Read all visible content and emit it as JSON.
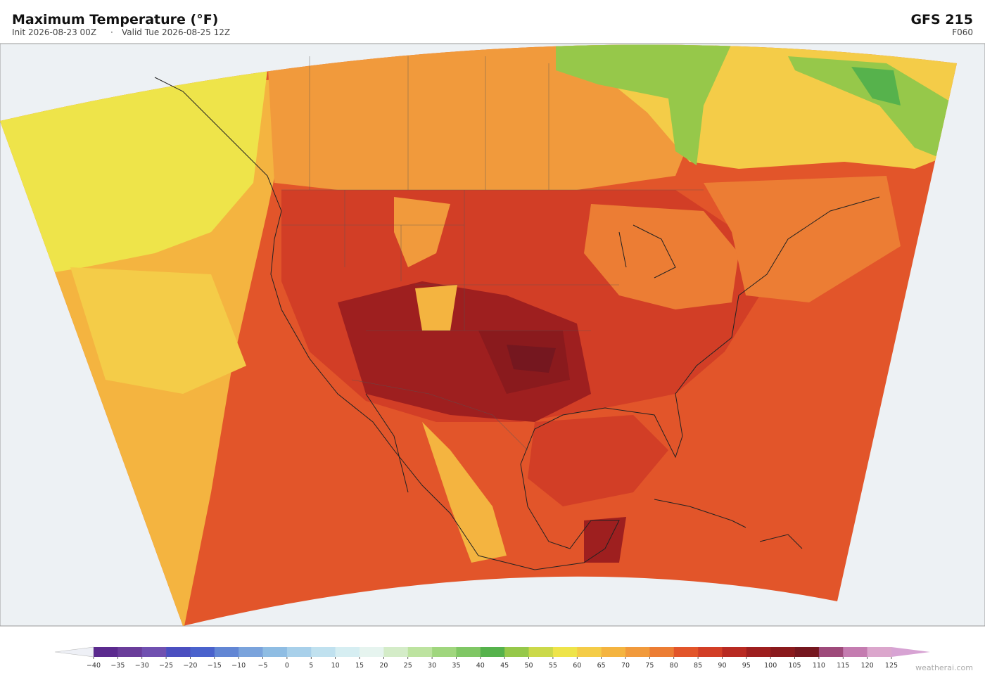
{
  "header": {
    "title": "Maximum Temperature  (°F)",
    "init": "Init 2026-08-23 00Z",
    "separator": "·",
    "valid": "Valid Tue 2026-08-25 12Z",
    "model": "GFS  215",
    "forecast_hour": "F060"
  },
  "colorbar": {
    "ticks": [
      {
        "value": -40,
        "label": "−40"
      },
      {
        "value": -35,
        "label": "−35"
      },
      {
        "value": -30,
        "label": "−30"
      },
      {
        "value": -25,
        "label": "−25"
      },
      {
        "value": -20,
        "label": "−20"
      },
      {
        "value": -15,
        "label": "−15"
      },
      {
        "value": -10,
        "label": "−10"
      },
      {
        "value": -5,
        "label": "−5"
      },
      0,
      5,
      10,
      15,
      20,
      25,
      30,
      35,
      40,
      45,
      50,
      55,
      60,
      65,
      70,
      75,
      80,
      85,
      90,
      95,
      100,
      105,
      110,
      115,
      120,
      125
    ],
    "colors": [
      "#5b2a8e",
      "#6a3d9a",
      "#7050b0",
      "#4b4fc0",
      "#4a62cc",
      "#6286d4",
      "#7aa3dc",
      "#8fbde3",
      "#a8d0ea",
      "#c0e1ef",
      "#d6eef2",
      "#e6f4ef",
      "#d4ecc8",
      "#bde3a0",
      "#a0d67e",
      "#80c765",
      "#56b24c",
      "#96c84a",
      "#cbd94a",
      "#eee44a",
      "#f4cc48",
      "#f4b440",
      "#f19a3c",
      "#ec7d34",
      "#e2552a",
      "#d23e26",
      "#b82a22",
      "#9e1f1f",
      "#8a1a1d",
      "#75171f",
      "#9e4a7a",
      "#c47cb0",
      "#dba6cc"
    ],
    "under_color": "#eef0f6",
    "over_color": "#d7a3d3"
  },
  "footer": {
    "credit": "weatherai.com"
  }
}
